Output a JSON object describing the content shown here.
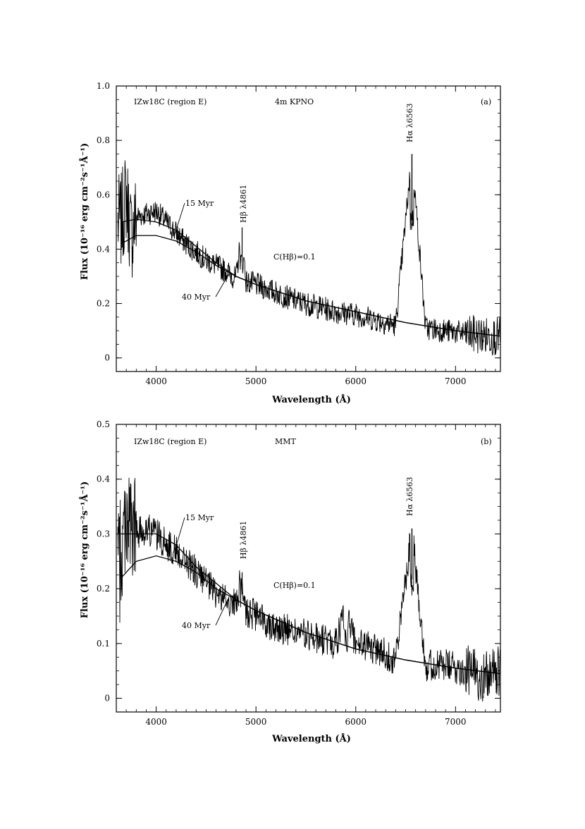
{
  "chart_data": [
    {
      "type": "line",
      "panel_label": "(a)",
      "object_label": "IZw18C (region E)",
      "telescope": "4m KPNO",
      "xlabel": "Wavelength (Å)",
      "ylabel": "Flux (10⁻¹⁶ erg cm⁻²s⁻¹Å⁻¹)",
      "xlim": [
        3600,
        7450
      ],
      "ylim": [
        -0.05,
        1.0
      ],
      "xticks": [
        4000,
        5000,
        6000,
        7000
      ],
      "xtick_labels": [
        "4000",
        "5000",
        "6000",
        "7000"
      ],
      "yticks": [
        0,
        0.2,
        0.4,
        0.6,
        0.8,
        1.0
      ],
      "ytick_labels": [
        "0",
        "0.2",
        "0.4",
        "0.6",
        "0.8",
        "1.0"
      ],
      "grid": false,
      "annotations": {
        "myr15": "15 Myr",
        "myr40": "40 Myr",
        "extinction": "C(Hβ)=0.1",
        "hbeta": "Hβ λ4861",
        "halpha": "Hα λ6563"
      },
      "observed_spectrum": {
        "x": [
          3650,
          3700,
          3750,
          3800,
          3900,
          4000,
          4100,
          4200,
          4300,
          4400,
          4500,
          4600,
          4700,
          4800,
          4861,
          4900,
          5000,
          5200,
          5400,
          5600,
          5800,
          6000,
          6200,
          6400,
          6563,
          6700,
          6900,
          7100,
          7300,
          7450
        ],
        "y": [
          0.5,
          0.6,
          0.45,
          0.52,
          0.53,
          0.54,
          0.5,
          0.46,
          0.42,
          0.39,
          0.36,
          0.34,
          0.32,
          0.29,
          0.48,
          0.28,
          0.27,
          0.24,
          0.21,
          0.19,
          0.17,
          0.16,
          0.14,
          0.12,
          0.75,
          0.11,
          0.1,
          0.09,
          0.08,
          0.08
        ]
      },
      "model_15_myr": {
        "x": [
          3650,
          3800,
          4000,
          4200,
          4400,
          4600,
          4800,
          5000,
          5500,
          6000,
          6500,
          7000,
          7450
        ],
        "y": [
          0.5,
          0.51,
          0.5,
          0.47,
          0.41,
          0.35,
          0.3,
          0.27,
          0.21,
          0.17,
          0.13,
          0.1,
          0.08
        ]
      },
      "model_40_myr": {
        "x": [
          3650,
          3800,
          4000,
          4200,
          4400,
          4600,
          4800,
          5000,
          5500,
          6000,
          6500,
          7000,
          7450
        ],
        "y": [
          0.42,
          0.45,
          0.45,
          0.43,
          0.39,
          0.34,
          0.3,
          0.27,
          0.21,
          0.17,
          0.13,
          0.1,
          0.08
        ]
      }
    },
    {
      "type": "line",
      "panel_label": "(b)",
      "object_label": "IZw18C (region E)",
      "telescope": "MMT",
      "xlabel": "Wavelength (Å)",
      "ylabel": "Flux (10⁻¹⁶ erg cm⁻²s⁻¹Å⁻¹)",
      "xlim": [
        3600,
        7450
      ],
      "ylim": [
        -0.025,
        0.5
      ],
      "xticks": [
        4000,
        5000,
        6000,
        7000
      ],
      "xtick_labels": [
        "4000",
        "5000",
        "6000",
        "7000"
      ],
      "yticks": [
        0,
        0.1,
        0.2,
        0.3,
        0.4,
        0.5
      ],
      "ytick_labels": [
        "0",
        "0.1",
        "0.2",
        "0.3",
        "0.4",
        "0.5"
      ],
      "grid": false,
      "annotations": {
        "myr15": "15 Myr",
        "myr40": "40 Myr",
        "extinction": "C(Hβ)=0.1",
        "hbeta": "Hβ λ4861",
        "halpha": "Hα λ6563"
      },
      "observed_spectrum": {
        "x": [
          3650,
          3700,
          3750,
          3800,
          3900,
          4000,
          4100,
          4200,
          4300,
          4400,
          4500,
          4600,
          4700,
          4800,
          4861,
          4900,
          5000,
          5200,
          5400,
          5600,
          5800,
          5900,
          6000,
          6200,
          6400,
          6563,
          6700,
          6900,
          7100,
          7300,
          7450
        ],
        "y": [
          0.25,
          0.35,
          0.3,
          0.3,
          0.31,
          0.3,
          0.28,
          0.27,
          0.25,
          0.23,
          0.21,
          0.19,
          0.18,
          0.17,
          0.23,
          0.16,
          0.15,
          0.13,
          0.12,
          0.11,
          0.1,
          0.16,
          0.1,
          0.09,
          0.07,
          0.31,
          0.06,
          0.06,
          0.05,
          0.04,
          0.05
        ]
      },
      "model_15_myr": {
        "x": [
          3650,
          3800,
          4000,
          4200,
          4400,
          4600,
          4800,
          5000,
          5500,
          6000,
          6500,
          7000,
          7450
        ],
        "y": [
          0.3,
          0.3,
          0.3,
          0.28,
          0.24,
          0.21,
          0.18,
          0.16,
          0.12,
          0.09,
          0.07,
          0.055,
          0.045
        ]
      },
      "model_40_myr": {
        "x": [
          3650,
          3800,
          4000,
          4200,
          4400,
          4600,
          4800,
          5000,
          5500,
          6000,
          6500,
          7000,
          7450
        ],
        "y": [
          0.22,
          0.25,
          0.26,
          0.25,
          0.23,
          0.2,
          0.18,
          0.16,
          0.12,
          0.09,
          0.07,
          0.055,
          0.045
        ]
      }
    }
  ]
}
